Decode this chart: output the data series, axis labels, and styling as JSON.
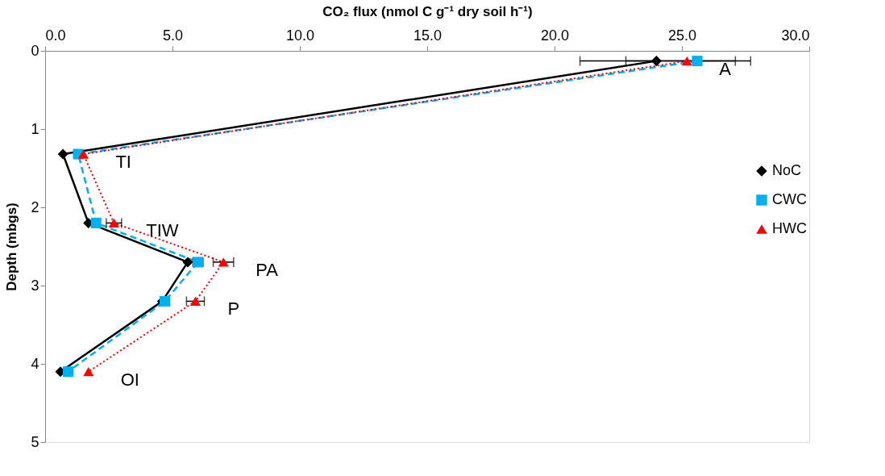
{
  "chart_data": {
    "type": "line",
    "xlabel": "CO₂ flux (nmol C g⁻¹ dry soil h⁻¹)",
    "ylabel": "Depth (mbgs)",
    "xlim": [
      0,
      30
    ],
    "xticks": [
      {
        "value": 0,
        "label": "0.0"
      },
      {
        "value": 5,
        "label": "5.0"
      },
      {
        "value": 10,
        "label": "10.0"
      },
      {
        "value": 15,
        "label": "15.0"
      },
      {
        "value": 20,
        "label": "20.0"
      },
      {
        "value": 25,
        "label": "25.0"
      },
      {
        "value": 30,
        "label": "30.0"
      }
    ],
    "ylim": [
      5,
      0
    ],
    "yticks": [
      0,
      1,
      2,
      3,
      4,
      5
    ],
    "grid": false,
    "legend": "right",
    "series": [
      {
        "name": "NoC",
        "color": "#000000",
        "marker": "diamond",
        "line_style": "solid",
        "x": [
          24.0,
          0.7,
          1.7,
          5.6,
          4.6,
          0.6
        ],
        "values": [
          0.13,
          1.32,
          2.2,
          2.7,
          3.2,
          4.1
        ],
        "xerrors": [
          [
            21.0,
            27.7
          ],
          null,
          null,
          null,
          null,
          null
        ]
      },
      {
        "name": "CWC",
        "color": "#00b0f0",
        "marker": "square",
        "line_style": "dashed",
        "x": [
          25.6,
          1.3,
          2.0,
          6.0,
          4.7,
          0.9
        ],
        "values": [
          0.13,
          1.32,
          2.2,
          2.7,
          3.2,
          4.1
        ],
        "xerrors": [
          null,
          null,
          null,
          0.2,
          null,
          null
        ]
      },
      {
        "name": "HWC",
        "color": "#ff0000",
        "marker": "triangle",
        "line_style": "dotted",
        "x": [
          25.2,
          1.5,
          2.7,
          7.0,
          5.9,
          1.7
        ],
        "values": [
          0.13,
          1.32,
          2.2,
          2.7,
          3.2,
          4.1
        ],
        "xerrors": [
          [
            22.8,
            27.1
          ],
          null,
          0.3,
          0.4,
          0.35,
          null
        ]
      }
    ],
    "annotations": [
      {
        "text": "A",
        "x": 25.2,
        "y": 0.13
      },
      {
        "text": "TI",
        "x": 1.5,
        "y": 1.32
      },
      {
        "text": "TIW",
        "x": 2.7,
        "y": 2.2
      },
      {
        "text": "PA",
        "x": 7.0,
        "y": 2.7
      },
      {
        "text": "P",
        "x": 5.9,
        "y": 3.2
      },
      {
        "text": "OI",
        "x": 1.7,
        "y": 4.1
      }
    ]
  }
}
